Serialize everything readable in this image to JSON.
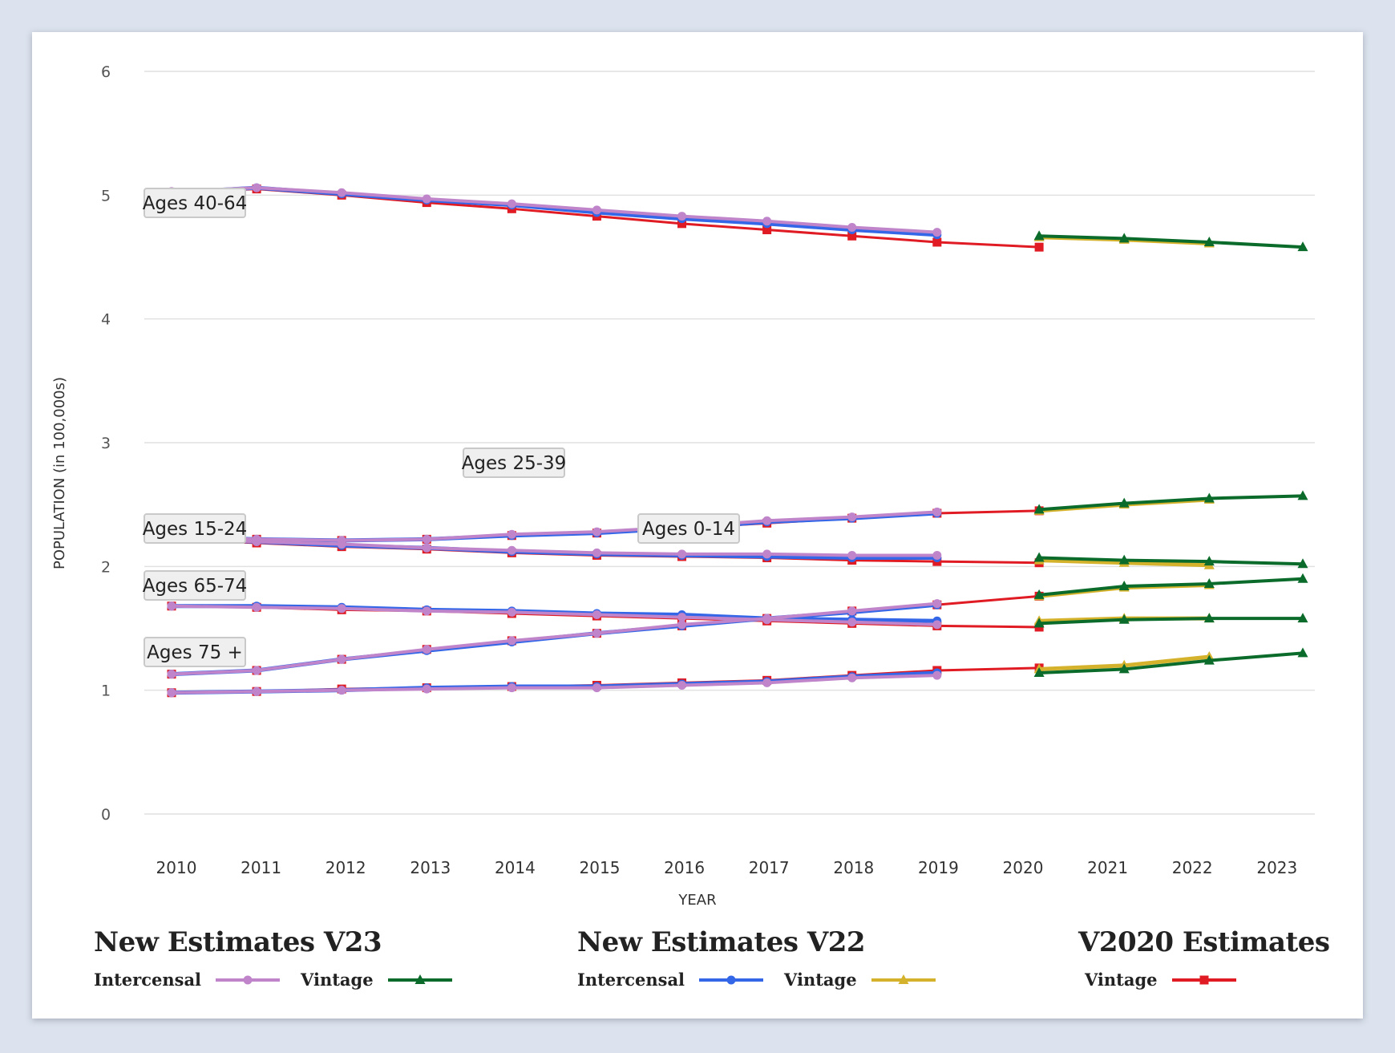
{
  "chart_data": {
    "type": "line",
    "title": "",
    "xlabel": "YEAR",
    "ylabel": "POPULATION (in 100,000s)",
    "ylim": [
      0,
      6
    ],
    "yticks": [
      "0",
      "1",
      "2",
      "3",
      "4",
      "5",
      "6"
    ],
    "xticks": [
      "2010",
      "2011",
      "2012",
      "2013",
      "2014",
      "2015",
      "2016",
      "2017",
      "2018",
      "2019",
      "2020",
      "2021",
      "2022",
      "2023"
    ],
    "grid": true,
    "annotations": [
      {
        "text": "Ages 40-64",
        "group": "40-64"
      },
      {
        "text": "Ages 25-39",
        "group": "25-39"
      },
      {
        "text": "Ages 15-24",
        "group": "15-24"
      },
      {
        "text": "Ages 0-14",
        "group": "0-14"
      },
      {
        "text": "Ages 65-74",
        "group": "65-74"
      },
      {
        "text": "Ages 75 +",
        "group": "75+"
      }
    ],
    "series_styles": {
      "v23_intercensal": {
        "color": "#bf84c9",
        "marker": "circle",
        "label": "Intercensal",
        "legend_group": "New Estimates V23"
      },
      "v23_vintage": {
        "color": "#0a6b2a",
        "marker": "triangle",
        "label": "Vintage",
        "legend_group": "New Estimates V23"
      },
      "v22_intercensal": {
        "color": "#3466e8",
        "marker": "circle",
        "label": "Intercensal",
        "legend_group": "New Estimates V22"
      },
      "v22_vintage": {
        "color": "#d4b22c",
        "marker": "triangle",
        "label": "Vintage",
        "legend_group": "New Estimates V22"
      },
      "v2020_vintage": {
        "color": "#e01b23",
        "marker": "square",
        "label": "Vintage",
        "legend_group": "V2020 Estimates"
      }
    },
    "series": [
      {
        "name": "Ages 40-64 V2020 Vintage",
        "style": "v2020_vintage",
        "x": [
          2010,
          2011,
          2012,
          2013,
          2014,
          2015,
          2016,
          2017,
          2018,
          2019,
          2020.2
        ],
        "y": [
          5.02,
          5.05,
          5.0,
          4.94,
          4.89,
          4.83,
          4.77,
          4.72,
          4.67,
          4.62,
          4.58
        ]
      },
      {
        "name": "Ages 40-64 V22 Intercensal",
        "style": "v22_intercensal",
        "x": [
          2010,
          2011,
          2012,
          2013,
          2014,
          2015,
          2016,
          2017,
          2018,
          2019
        ],
        "y": [
          5.02,
          5.06,
          5.01,
          4.96,
          4.92,
          4.86,
          4.81,
          4.77,
          4.72,
          4.68
        ]
      },
      {
        "name": "Ages 40-64 V23 Intercensal",
        "style": "v23_intercensal",
        "x": [
          2010,
          2011,
          2012,
          2013,
          2014,
          2015,
          2016,
          2017,
          2018,
          2019
        ],
        "y": [
          5.03,
          5.06,
          5.02,
          4.97,
          4.93,
          4.88,
          4.83,
          4.79,
          4.74,
          4.7
        ]
      },
      {
        "name": "Ages 40-64 V22 Vintage",
        "style": "v22_vintage",
        "x": [
          2020.2,
          2021.2,
          2022.2
        ],
        "y": [
          4.66,
          4.64,
          4.61
        ]
      },
      {
        "name": "Ages 40-64 V23 Vintage",
        "style": "v23_vintage",
        "x": [
          2020.2,
          2021.2,
          2022.2,
          2023.3
        ],
        "y": [
          4.67,
          4.65,
          4.62,
          4.58
        ]
      },
      {
        "name": "Ages 25-39 V2020 Vintage",
        "style": "v2020_vintage",
        "x": [
          2010,
          2011,
          2012,
          2013,
          2014,
          2015,
          2016,
          2017,
          2018,
          2019,
          2020.2
        ],
        "y": [
          2.24,
          2.22,
          2.21,
          2.22,
          2.25,
          2.27,
          2.31,
          2.35,
          2.39,
          2.43,
          2.45
        ]
      },
      {
        "name": "Ages 25-39 V22 Intercensal",
        "style": "v22_intercensal",
        "x": [
          2010,
          2011,
          2012,
          2013,
          2014,
          2015,
          2016,
          2017,
          2018,
          2019
        ],
        "y": [
          2.24,
          2.22,
          2.21,
          2.22,
          2.25,
          2.27,
          2.31,
          2.36,
          2.39,
          2.43
        ]
      },
      {
        "name": "Ages 25-39 V23 Intercensal",
        "style": "v23_intercensal",
        "x": [
          2010,
          2011,
          2012,
          2013,
          2014,
          2015,
          2016,
          2017,
          2018,
          2019
        ],
        "y": [
          2.24,
          2.22,
          2.21,
          2.22,
          2.26,
          2.28,
          2.32,
          2.37,
          2.4,
          2.44
        ]
      },
      {
        "name": "Ages 25-39 V22 Vintage",
        "style": "v22_vintage",
        "x": [
          2020.2,
          2021.2,
          2022.2
        ],
        "y": [
          2.45,
          2.5,
          2.54
        ]
      },
      {
        "name": "Ages 25-39 V23 Vintage",
        "style": "v23_vintage",
        "x": [
          2020.2,
          2021.2,
          2022.2,
          2023.3
        ],
        "y": [
          2.46,
          2.51,
          2.55,
          2.57
        ]
      },
      {
        "name": "Ages 0-14 V2020 Vintage",
        "style": "v2020_vintage",
        "x": [
          2010,
          2011,
          2012,
          2013,
          2014,
          2015,
          2016,
          2017,
          2018,
          2019,
          2020.2
        ],
        "y": [
          2.22,
          2.19,
          2.16,
          2.14,
          2.11,
          2.09,
          2.08,
          2.07,
          2.05,
          2.04,
          2.03
        ]
      },
      {
        "name": "Ages 0-14 V22 Intercensal",
        "style": "v22_intercensal",
        "x": [
          2010,
          2011,
          2012,
          2013,
          2014,
          2015,
          2016,
          2017,
          2018,
          2019
        ],
        "y": [
          2.23,
          2.2,
          2.17,
          2.15,
          2.12,
          2.1,
          2.09,
          2.08,
          2.07,
          2.07
        ]
      },
      {
        "name": "Ages 0-14 V23 Intercensal",
        "style": "v23_intercensal",
        "x": [
          2010,
          2011,
          2012,
          2013,
          2014,
          2015,
          2016,
          2017,
          2018,
          2019
        ],
        "y": [
          2.23,
          2.2,
          2.18,
          2.15,
          2.13,
          2.11,
          2.1,
          2.1,
          2.09,
          2.09
        ]
      },
      {
        "name": "Ages 0-14 V22 Vintage",
        "style": "v22_vintage",
        "x": [
          2020.2,
          2021.2,
          2022.2
        ],
        "y": [
          2.05,
          2.03,
          2.01
        ]
      },
      {
        "name": "Ages 0-14 V23 Vintage",
        "style": "v23_vintage",
        "x": [
          2020.2,
          2021.2,
          2022.2,
          2023.3
        ],
        "y": [
          2.07,
          2.05,
          2.04,
          2.02
        ]
      },
      {
        "name": "Ages 15-24 V2020 Vintage",
        "style": "v2020_vintage",
        "x": [
          2010,
          2011,
          2012,
          2013,
          2014,
          2015,
          2016,
          2017,
          2018,
          2019,
          2020.2
        ],
        "y": [
          1.68,
          1.67,
          1.65,
          1.64,
          1.62,
          1.6,
          1.58,
          1.56,
          1.54,
          1.52,
          1.51
        ]
      },
      {
        "name": "Ages 15-24 V22 Intercensal",
        "style": "v22_intercensal",
        "x": [
          2010,
          2011,
          2012,
          2013,
          2014,
          2015,
          2016,
          2017,
          2018,
          2019
        ],
        "y": [
          1.68,
          1.68,
          1.67,
          1.65,
          1.64,
          1.62,
          1.61,
          1.58,
          1.57,
          1.56
        ]
      },
      {
        "name": "Ages 15-24 V23 Intercensal",
        "style": "v23_intercensal",
        "x": [
          2010,
          2011,
          2012,
          2013,
          2014,
          2015,
          2016,
          2017,
          2018,
          2019
        ],
        "y": [
          1.68,
          1.67,
          1.66,
          1.64,
          1.63,
          1.61,
          1.59,
          1.57,
          1.55,
          1.53
        ]
      },
      {
        "name": "Ages 15-24 V22 Vintage",
        "style": "v22_vintage",
        "x": [
          2020.2,
          2021.2,
          2022.2
        ],
        "y": [
          1.56,
          1.58,
          1.58
        ]
      },
      {
        "name": "Ages 15-24 V23 Vintage",
        "style": "v23_vintage",
        "x": [
          2020.2,
          2021.2,
          2022.2,
          2023.3
        ],
        "y": [
          1.54,
          1.57,
          1.58,
          1.58
        ]
      },
      {
        "name": "Ages 65-74 V2020 Vintage",
        "style": "v2020_vintage",
        "x": [
          2010,
          2011,
          2012,
          2013,
          2014,
          2015,
          2016,
          2017,
          2018,
          2019,
          2020.2
        ],
        "y": [
          1.13,
          1.16,
          1.25,
          1.33,
          1.4,
          1.46,
          1.52,
          1.58,
          1.64,
          1.69,
          1.76
        ]
      },
      {
        "name": "Ages 65-74 V22 Intercensal",
        "style": "v22_intercensal",
        "x": [
          2010,
          2011,
          2012,
          2013,
          2014,
          2015,
          2016,
          2017,
          2018,
          2019
        ],
        "y": [
          1.13,
          1.16,
          1.25,
          1.32,
          1.39,
          1.46,
          1.52,
          1.58,
          1.63,
          1.69
        ]
      },
      {
        "name": "Ages 65-74 V23 Intercensal",
        "style": "v23_intercensal",
        "x": [
          2010,
          2011,
          2012,
          2013,
          2014,
          2015,
          2016,
          2017,
          2018,
          2019
        ],
        "y": [
          1.13,
          1.16,
          1.25,
          1.33,
          1.4,
          1.46,
          1.53,
          1.58,
          1.64,
          1.7
        ]
      },
      {
        "name": "Ages 65-74 V22 Vintage",
        "style": "v22_vintage",
        "x": [
          2020.2,
          2021.2,
          2022.2
        ],
        "y": [
          1.76,
          1.83,
          1.85
        ]
      },
      {
        "name": "Ages 65-74 V23 Vintage",
        "style": "v23_vintage",
        "x": [
          2020.2,
          2021.2,
          2022.2,
          2023.3
        ],
        "y": [
          1.77,
          1.84,
          1.86,
          1.9
        ]
      },
      {
        "name": "Ages 75+ V2020 Vintage",
        "style": "v2020_vintage",
        "x": [
          2010,
          2011,
          2012,
          2013,
          2014,
          2015,
          2016,
          2017,
          2018,
          2019,
          2020.2
        ],
        "y": [
          0.98,
          0.99,
          1.01,
          1.02,
          1.03,
          1.04,
          1.06,
          1.08,
          1.12,
          1.16,
          1.18
        ]
      },
      {
        "name": "Ages 75+ V22 Intercensal",
        "style": "v22_intercensal",
        "x": [
          2010,
          2011,
          2012,
          2013,
          2014,
          2015,
          2016,
          2017,
          2018,
          2019
        ],
        "y": [
          0.98,
          0.99,
          1.0,
          1.02,
          1.03,
          1.03,
          1.05,
          1.07,
          1.11,
          1.14
        ]
      },
      {
        "name": "Ages 75+ V23 Intercensal",
        "style": "v23_intercensal",
        "x": [
          2010,
          2011,
          2012,
          2013,
          2014,
          2015,
          2016,
          2017,
          2018,
          2019
        ],
        "y": [
          0.98,
          0.99,
          1.0,
          1.01,
          1.02,
          1.02,
          1.04,
          1.06,
          1.1,
          1.12
        ]
      },
      {
        "name": "Ages 75+ V22 Vintage",
        "style": "v22_vintage",
        "x": [
          2020.2,
          2021.2,
          2022.2
        ],
        "y": [
          1.17,
          1.2,
          1.27
        ]
      },
      {
        "name": "Ages 75+ V23 Vintage",
        "style": "v23_vintage",
        "x": [
          2020.2,
          2021.2,
          2022.2,
          2023.3
        ],
        "y": [
          1.14,
          1.17,
          1.24,
          1.3
        ]
      }
    ]
  },
  "legend": {
    "groups": [
      {
        "title": "New Estimates V23",
        "items": [
          {
            "label": "Intercensal",
            "color": "#bf84c9",
            "marker": "circle"
          },
          {
            "label": "Vintage",
            "color": "#0a6b2a",
            "marker": "triangle"
          }
        ]
      },
      {
        "title": "New Estimates V22",
        "items": [
          {
            "label": "Intercensal",
            "color": "#3466e8",
            "marker": "circle"
          },
          {
            "label": "Vintage",
            "color": "#d4b22c",
            "marker": "triangle"
          }
        ]
      },
      {
        "title": "V2020 Estimates",
        "items": [
          {
            "label": "Vintage",
            "color": "#e01b23",
            "marker": "square"
          }
        ]
      }
    ]
  }
}
